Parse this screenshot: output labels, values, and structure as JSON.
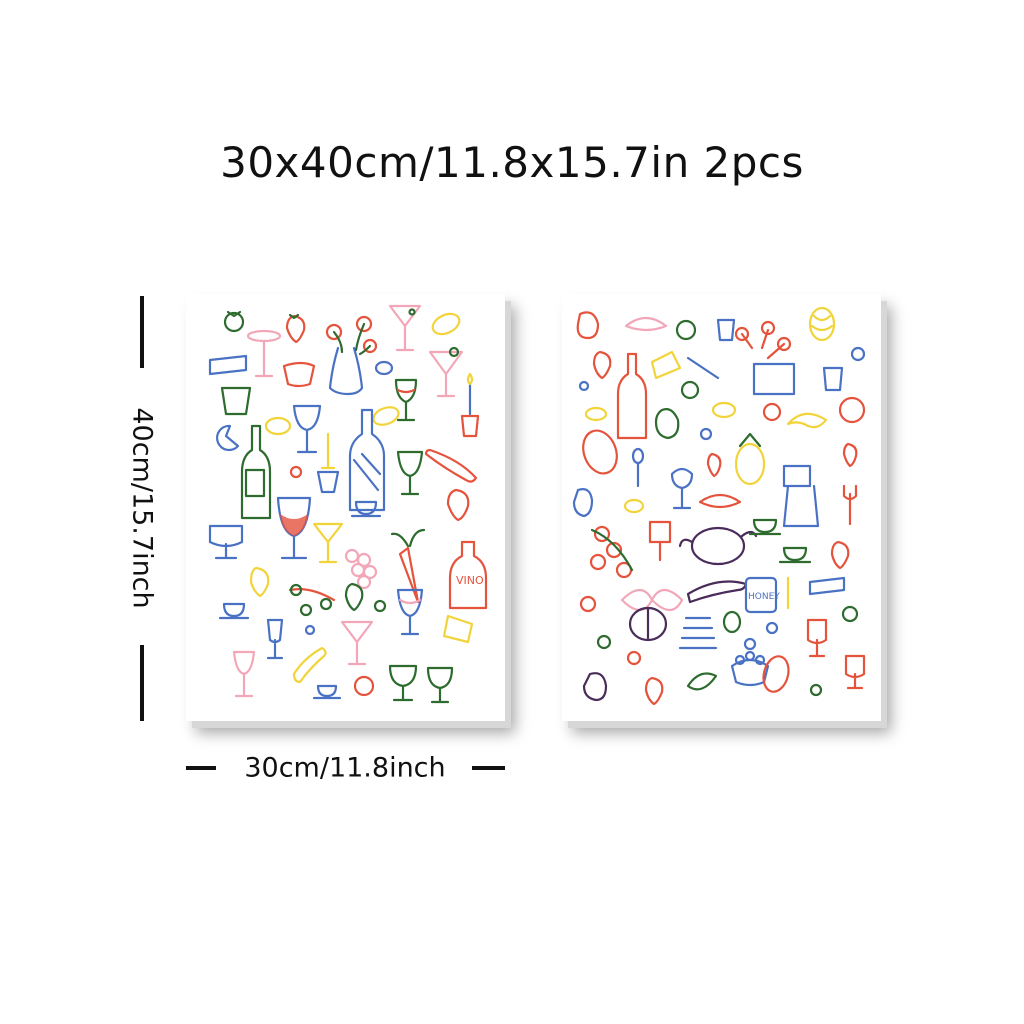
{
  "headline": "30x40cm/11.8x15.7in 2pcs",
  "dimensions": {
    "height_label": "40cm/15.7inch",
    "width_label": "30cm/11.8inch"
  },
  "posters": [
    {
      "label_text": "VINO",
      "palette": [
        "#e5533d",
        "#4a72c4",
        "#2e6b2e",
        "#f2d43a",
        "#f2a7b8"
      ]
    },
    {
      "label_text": "HONEY",
      "palette": [
        "#e5533d",
        "#4a72c4",
        "#2e6b2e",
        "#f2d43a",
        "#f2a7b8",
        "#4a2c5a"
      ]
    }
  ]
}
